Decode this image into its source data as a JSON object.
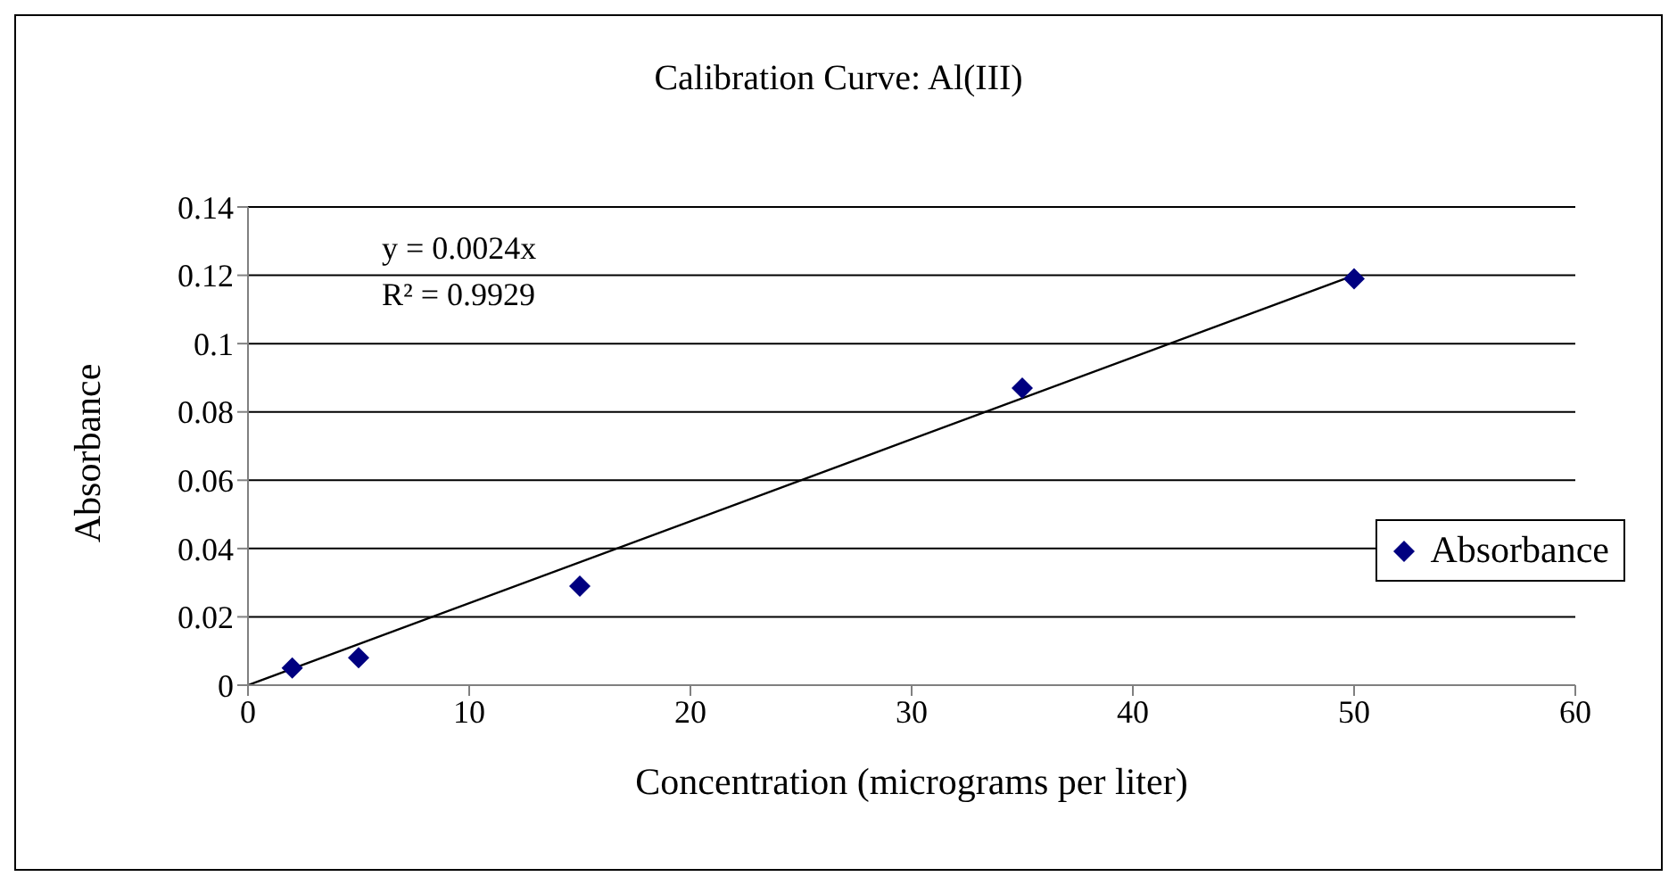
{
  "chart_data": {
    "type": "scatter",
    "title": "Calibration Curve: Al(III)",
    "xlabel": "Concentration (micrograms per liter)",
    "ylabel": "Absorbance",
    "x": [
      2,
      5,
      15,
      35,
      50
    ],
    "series": [
      {
        "name": "Absorbance",
        "color": "#000080",
        "values": [
          0.005,
          0.008,
          0.029,
          0.087,
          0.119
        ],
        "marker": "diamond"
      },
      {
        "type": "line",
        "color": "#000000",
        "x": [
          0,
          50
        ],
        "values": [
          0,
          0.12
        ],
        "marker": "none",
        "line_style": "solid"
      }
    ],
    "xlim": [
      0,
      60
    ],
    "xticks": [
      0,
      10,
      20,
      30,
      40,
      50,
      60
    ],
    "ylim": [
      0,
      0.14
    ],
    "yticks": [
      0,
      0.02,
      0.04,
      0.06,
      0.08,
      0.1,
      0.12,
      0.14
    ],
    "grid": "y",
    "legend": "right",
    "annotations": [
      "y = 0.0024x",
      "R² = 0.9929"
    ]
  }
}
